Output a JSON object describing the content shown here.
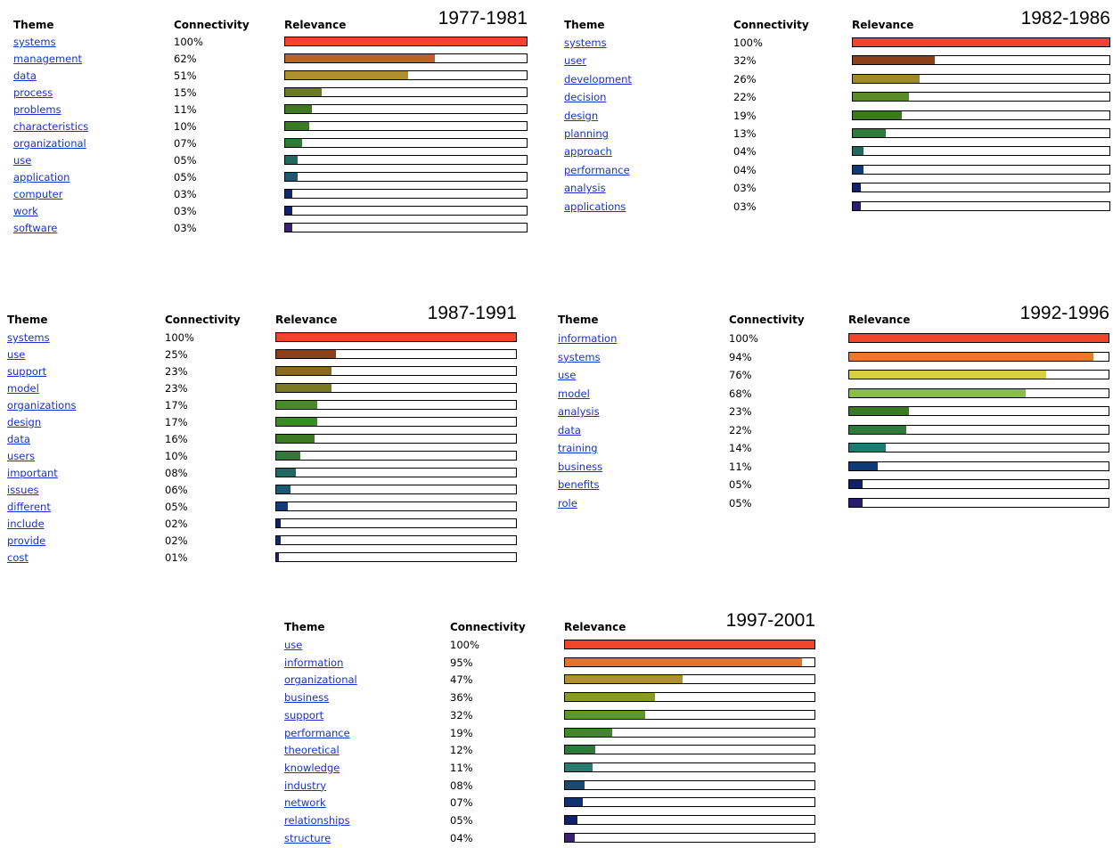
{
  "columns": [
    "Theme",
    "Connectivity",
    "Relevance"
  ],
  "panels": [
    {
      "period": "1977-1981",
      "rows": [
        {
          "theme": "systems",
          "connectivity": {
            "value": 100,
            "label": "100%"
          },
          "color": "#f0452a"
        },
        {
          "theme": "management",
          "connectivity": {
            "value": 62,
            "label": "62%"
          },
          "color": "#c0602a"
        },
        {
          "theme": "data",
          "connectivity": {
            "value": 51,
            "label": "51%"
          },
          "color": "#b0902e"
        },
        {
          "theme": "process",
          "connectivity": {
            "value": 15,
            "label": "15%"
          },
          "color": "#6a7a20"
        },
        {
          "theme": "problems",
          "connectivity": {
            "value": 11,
            "label": "11%"
          },
          "color": "#3f7a20"
        },
        {
          "theme": "characteristics",
          "connectivity": {
            "value": 10,
            "label": "10%"
          },
          "color": "#3a7a25"
        },
        {
          "theme": "organizational",
          "connectivity": {
            "value": 7,
            "label": "07%"
          },
          "color": "#2f7a35"
        },
        {
          "theme": "use",
          "connectivity": {
            "value": 5,
            "label": "05%"
          },
          "color": "#236a5e"
        },
        {
          "theme": "application",
          "connectivity": {
            "value": 5,
            "label": "05%"
          },
          "color": "#1a5a70"
        },
        {
          "theme": "computer",
          "connectivity": {
            "value": 3,
            "label": "03%"
          },
          "color": "#102a6a"
        },
        {
          "theme": "work",
          "connectivity": {
            "value": 3,
            "label": "03%"
          },
          "color": "#10206a"
        },
        {
          "theme": "software",
          "connectivity": {
            "value": 3,
            "label": "03%"
          },
          "color": "#3a2070"
        }
      ]
    },
    {
      "period": "1982-1986",
      "rows": [
        {
          "theme": "systems",
          "connectivity": {
            "value": 100,
            "label": "100%"
          },
          "color": "#f0452a"
        },
        {
          "theme": "user",
          "connectivity": {
            "value": 32,
            "label": "32%"
          },
          "color": "#8a4018"
        },
        {
          "theme": "development",
          "connectivity": {
            "value": 26,
            "label": "26%"
          },
          "color": "#a08a28"
        },
        {
          "theme": "decision",
          "connectivity": {
            "value": 22,
            "label": "22%"
          },
          "color": "#5a8a2a"
        },
        {
          "theme": "design",
          "connectivity": {
            "value": 19,
            "label": "19%"
          },
          "color": "#3a7a1e"
        },
        {
          "theme": "planning",
          "connectivity": {
            "value": 13,
            "label": "13%"
          },
          "color": "#2e7a3a"
        },
        {
          "theme": "approach",
          "connectivity": {
            "value": 4,
            "label": "04%"
          },
          "color": "#1f6a60"
        },
        {
          "theme": "performance",
          "connectivity": {
            "value": 4,
            "label": "04%"
          },
          "color": "#0f3a78"
        },
        {
          "theme": "analysis",
          "connectivity": {
            "value": 3,
            "label": "03%"
          },
          "color": "#10206a"
        },
        {
          "theme": "applications",
          "connectivity": {
            "value": 3,
            "label": "03%"
          },
          "color": "#2a1a70"
        }
      ]
    },
    {
      "period": "1987-1991",
      "rows": [
        {
          "theme": "systems",
          "connectivity": {
            "value": 100,
            "label": "100%"
          },
          "color": "#f0452a"
        },
        {
          "theme": "use",
          "connectivity": {
            "value": 25,
            "label": "25%"
          },
          "color": "#8a4018"
        },
        {
          "theme": "support",
          "connectivity": {
            "value": 23,
            "label": "23%"
          },
          "color": "#8a6a20"
        },
        {
          "theme": "model",
          "connectivity": {
            "value": 23,
            "label": "23%"
          },
          "color": "#7a7a22"
        },
        {
          "theme": "organizations",
          "connectivity": {
            "value": 17,
            "label": "17%"
          },
          "color": "#4a8a28"
        },
        {
          "theme": "design",
          "connectivity": {
            "value": 17,
            "label": "17%"
          },
          "color": "#3a8a25"
        },
        {
          "theme": "data",
          "connectivity": {
            "value": 16,
            "label": "16%"
          },
          "color": "#3a7a25"
        },
        {
          "theme": "users",
          "connectivity": {
            "value": 10,
            "label": "10%"
          },
          "color": "#2e7a3a"
        },
        {
          "theme": "important",
          "connectivity": {
            "value": 8,
            "label": "08%"
          },
          "color": "#1f6a60"
        },
        {
          "theme": "issues",
          "connectivity": {
            "value": 6,
            "label": "06%"
          },
          "color": "#1a5a70"
        },
        {
          "theme": "different",
          "connectivity": {
            "value": 5,
            "label": "05%"
          },
          "color": "#103a7a"
        },
        {
          "theme": "include",
          "connectivity": {
            "value": 2,
            "label": "02%"
          },
          "color": "#10206a"
        },
        {
          "theme": "provide",
          "connectivity": {
            "value": 2,
            "label": "02%"
          },
          "color": "#102a6a"
        },
        {
          "theme": "cost",
          "connectivity": {
            "value": 1,
            "label": "01%"
          },
          "color": "#2a1a70"
        }
      ]
    },
    {
      "period": "1992-1996",
      "rows": [
        {
          "theme": "information",
          "connectivity": {
            "value": 100,
            "label": "100%"
          },
          "color": "#f0452a"
        },
        {
          "theme": "systems",
          "connectivity": {
            "value": 94,
            "label": "94%"
          },
          "color": "#e87a30"
        },
        {
          "theme": "use",
          "connectivity": {
            "value": 76,
            "label": "76%"
          },
          "color": "#d8d040"
        },
        {
          "theme": "model",
          "connectivity": {
            "value": 68,
            "label": "68%"
          },
          "color": "#88c040"
        },
        {
          "theme": "analysis",
          "connectivity": {
            "value": 23,
            "label": "23%"
          },
          "color": "#3a7a25"
        },
        {
          "theme": "data",
          "connectivity": {
            "value": 22,
            "label": "22%"
          },
          "color": "#2e7a3a"
        },
        {
          "theme": "training",
          "connectivity": {
            "value": 14,
            "label": "14%"
          },
          "color": "#217a70"
        },
        {
          "theme": "business",
          "connectivity": {
            "value": 11,
            "label": "11%"
          },
          "color": "#0f3a78"
        },
        {
          "theme": "benefits",
          "connectivity": {
            "value": 5,
            "label": "05%"
          },
          "color": "#10206a"
        },
        {
          "theme": "role",
          "connectivity": {
            "value": 5,
            "label": "05%"
          },
          "color": "#2a1a70"
        }
      ]
    },
    {
      "period": "1997-2001",
      "rows": [
        {
          "theme": "use",
          "connectivity": {
            "value": 100,
            "label": "100%"
          },
          "color": "#f0452a"
        },
        {
          "theme": "information",
          "connectivity": {
            "value": 95,
            "label": "95%"
          },
          "color": "#e8702a"
        },
        {
          "theme": "organizational",
          "connectivity": {
            "value": 47,
            "label": "47%"
          },
          "color": "#b0902e"
        },
        {
          "theme": "business",
          "connectivity": {
            "value": 36,
            "label": "36%"
          },
          "color": "#8a9a2a"
        },
        {
          "theme": "support",
          "connectivity": {
            "value": 32,
            "label": "32%"
          },
          "color": "#5a9a2a"
        },
        {
          "theme": "performance",
          "connectivity": {
            "value": 19,
            "label": "19%"
          },
          "color": "#3a8a25"
        },
        {
          "theme": "theoretical",
          "connectivity": {
            "value": 12,
            "label": "12%"
          },
          "color": "#2e7a3a"
        },
        {
          "theme": "knowledge",
          "connectivity": {
            "value": 11,
            "label": "11%"
          },
          "color": "#2a7a70"
        },
        {
          "theme": "industry",
          "connectivity": {
            "value": 8,
            "label": "08%"
          },
          "color": "#1a4a70"
        },
        {
          "theme": "network",
          "connectivity": {
            "value": 7,
            "label": "07%"
          },
          "color": "#103070"
        },
        {
          "theme": "relationships",
          "connectivity": {
            "value": 5,
            "label": "05%"
          },
          "color": "#10206a"
        },
        {
          "theme": "structure",
          "connectivity": {
            "value": 4,
            "label": "04%"
          },
          "color": "#3a2070"
        }
      ]
    }
  ]
}
